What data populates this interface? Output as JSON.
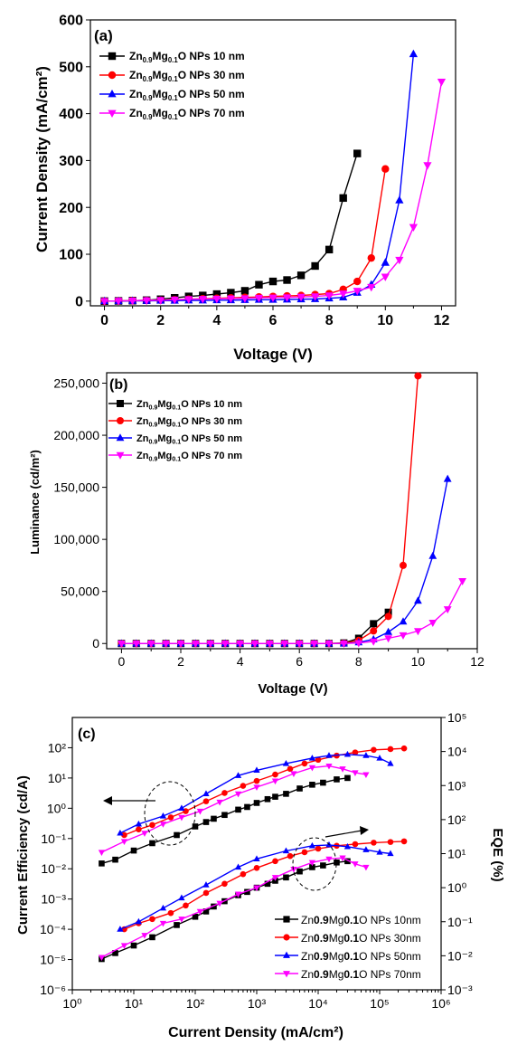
{
  "colors": {
    "s10": "#000000",
    "s30": "#ff0000",
    "s50": "#0000ff",
    "s70": "#ff00ff"
  },
  "chart_data": [
    {
      "panel": "(a)",
      "type": "line",
      "xlabel": "Voltage (V)",
      "ylabel": "Current Density (mA/cm²)",
      "xlim": [
        -0.5,
        12.5
      ],
      "ylim": [
        -10,
        600
      ],
      "xticks": [
        "0",
        "2",
        "4",
        "6",
        "8",
        "10",
        "12"
      ],
      "yticks": [
        "0",
        "100",
        "200",
        "300",
        "400",
        "500",
        "600"
      ],
      "legend_position": "top-left",
      "series": [
        {
          "name": "Zn0.9Mg0.1O NPs 10 nm",
          "marker": "square",
          "x": [
            0,
            0.5,
            1,
            1.5,
            2,
            2.5,
            3,
            3.5,
            4,
            4.5,
            5,
            5.5,
            6,
            6.5,
            7,
            7.5,
            8,
            8.5,
            9
          ],
          "y": [
            0,
            0.5,
            1,
            2,
            4,
            7,
            10,
            12,
            15,
            18,
            22,
            35,
            42,
            45,
            55,
            75,
            110,
            220,
            315
          ]
        },
        {
          "name": "Zn0.9Mg0.1O NPs 30 nm",
          "marker": "circle",
          "x": [
            0,
            0.5,
            1,
            1.5,
            2,
            2.5,
            3,
            3.5,
            4,
            4.5,
            5,
            5.5,
            6,
            6.5,
            7,
            7.5,
            8,
            8.5,
            9,
            9.5,
            10
          ],
          "y": [
            0,
            0.5,
            1,
            1.5,
            2,
            3,
            4,
            5,
            6,
            7,
            8,
            9,
            10,
            11,
            12,
            14,
            16,
            25,
            42,
            92,
            282
          ]
        },
        {
          "name": "Zn0.9Mg0.1O NPs 50 nm",
          "marker": "triangle-up",
          "x": [
            0,
            0.5,
            1,
            1.5,
            2,
            2.5,
            3,
            3.5,
            4,
            4.5,
            5,
            5.5,
            6,
            6.5,
            7,
            7.5,
            8,
            8.5,
            9,
            9.5,
            10,
            10.5,
            11
          ],
          "y": [
            0,
            0,
            0.5,
            0.5,
            1,
            1,
            1.5,
            1.5,
            2,
            2,
            2.5,
            3,
            3,
            3.5,
            4,
            4.5,
            6,
            8,
            18,
            35,
            82,
            215,
            527
          ]
        },
        {
          "name": "Zn0.9Mg0.1O NPs 70 nm",
          "marker": "triangle-down",
          "x": [
            0,
            0.5,
            1,
            1.5,
            2,
            2.5,
            3,
            3.5,
            4,
            4.5,
            5,
            5.5,
            6,
            6.5,
            7,
            7.5,
            8,
            8.5,
            9,
            9.5,
            10,
            10.5,
            11,
            11.5,
            12
          ],
          "y": [
            0,
            0.5,
            1,
            1.5,
            2,
            3,
            4,
            4.5,
            5,
            5.5,
            6,
            7,
            7.5,
            8,
            9,
            10,
            12,
            16,
            22,
            30,
            52,
            88,
            158,
            290,
            468
          ]
        }
      ]
    },
    {
      "panel": "(b)",
      "type": "line",
      "xlabel": "Voltage (V)",
      "ylabel": "Luminance (cd/m²)",
      "xlim": [
        -0.5,
        12
      ],
      "ylim": [
        -5000,
        260000
      ],
      "xticks": [
        "0",
        "2",
        "4",
        "6",
        "8",
        "10",
        "12"
      ],
      "yticks": [
        "0",
        "50,000",
        "100,000",
        "150,000",
        "200,000",
        "250,000"
      ],
      "legend_position": "top-left",
      "series": [
        {
          "name": "Zn0.9Mg0.1O NPs 10 nm",
          "marker": "square",
          "x": [
            0,
            0.5,
            1,
            1.5,
            2,
            2.5,
            3,
            3.5,
            4,
            4.5,
            5,
            5.5,
            6,
            6.5,
            7,
            7.5,
            8,
            8.5,
            9
          ],
          "y": [
            0,
            0,
            0,
            0,
            0,
            0,
            0,
            0,
            0,
            0,
            0,
            0,
            0,
            0,
            0,
            500,
            5000,
            19000,
            30000
          ]
        },
        {
          "name": "Zn0.9Mg0.1O NPs 30 nm",
          "marker": "circle",
          "x": [
            0,
            0.5,
            1,
            1.5,
            2,
            2.5,
            3,
            3.5,
            4,
            4.5,
            5,
            5.5,
            6,
            6.5,
            7,
            7.5,
            8,
            8.5,
            9,
            9.5,
            10
          ],
          "y": [
            0,
            0,
            0,
            0,
            0,
            0,
            0,
            0,
            0,
            0,
            0,
            0,
            0,
            0,
            0,
            300,
            3000,
            12000,
            26000,
            75000,
            257000
          ]
        },
        {
          "name": "Zn0.9Mg0.1O NPs 50 nm",
          "marker": "triangle-up",
          "x": [
            0,
            0.5,
            1,
            1.5,
            2,
            2.5,
            3,
            3.5,
            4,
            4.5,
            5,
            5.5,
            6,
            6.5,
            7,
            7.5,
            8,
            8.5,
            9,
            9.5,
            10,
            10.5,
            11
          ],
          "y": [
            0,
            0,
            0,
            0,
            0,
            0,
            0,
            0,
            0,
            0,
            0,
            0,
            0,
            0,
            0,
            0,
            1000,
            4000,
            11000,
            21000,
            41000,
            84000,
            158000
          ]
        },
        {
          "name": "Zn0.9Mg0.1O NPs 70 nm",
          "marker": "triangle-down",
          "x": [
            0,
            0.5,
            1,
            1.5,
            2,
            2.5,
            3,
            3.5,
            4,
            4.5,
            5,
            5.5,
            6,
            6.5,
            7,
            7.5,
            8,
            8.5,
            9,
            9.5,
            10,
            10.5,
            11,
            11.5
          ],
          "y": [
            0,
            0,
            0,
            0,
            0,
            0,
            0,
            0,
            0,
            0,
            0,
            0,
            0,
            0,
            0,
            0,
            500,
            2000,
            5000,
            8000,
            12000,
            20000,
            33000,
            60000
          ]
        }
      ]
    },
    {
      "panel": "(c)",
      "type": "line",
      "xlabel": "Current Density (mA/cm²)",
      "ylabel": "Current Efficiency (cd/A)",
      "ylabel_right": "EQE (%)",
      "xscale": "log",
      "yscale": "log",
      "xlim": [
        1,
        1000000
      ],
      "ylim": [
        1e-06,
        1000
      ],
      "ylim_right": [
        0.001,
        100000
      ],
      "xticks": [
        "10⁰",
        "10¹",
        "10²",
        "10³",
        "10⁴",
        "10⁵",
        "10⁶"
      ],
      "yticks": [
        "10⁻⁶",
        "10⁻⁵",
        "10⁻⁴",
        "10⁻³",
        "10⁻²",
        "10⁻¹",
        "10⁰",
        "10¹",
        "10²"
      ],
      "yticks_right": [
        "10⁻³",
        "10⁻²",
        "10⁻¹",
        "10⁰",
        "10¹",
        "10²",
        "10³",
        "10⁴",
        "10⁵"
      ],
      "legend_position": "bottom-right",
      "series": [
        {
          "name": "Zn0.9Mg0.1O NPs 10nm",
          "marker": "square",
          "axis": "left",
          "x": [
            3,
            5,
            10,
            20,
            50,
            100,
            150,
            200,
            300,
            500,
            700,
            1000,
            1500,
            2000,
            3000,
            5000,
            8000,
            12000,
            20000,
            30000
          ],
          "y": [
            0.015,
            0.02,
            0.04,
            0.07,
            0.13,
            0.25,
            0.35,
            0.45,
            0.6,
            0.9,
            1.1,
            1.5,
            2,
            2.4,
            3,
            4.5,
            6,
            7,
            9,
            10
          ]
        },
        {
          "name": "Zn0.9Mg0.1O NPs 30nm",
          "marker": "circle",
          "axis": "left",
          "x": [
            7,
            12,
            20,
            40,
            70,
            150,
            300,
            600,
            1000,
            2000,
            3500,
            6000,
            10000,
            20000,
            40000,
            80000,
            150000,
            250000
          ],
          "y": [
            0.13,
            0.2,
            0.28,
            0.5,
            0.8,
            1.7,
            3.2,
            5.5,
            8,
            13,
            20,
            30,
            40,
            55,
            70,
            85,
            90,
            95
          ]
        },
        {
          "name": "Zn0.9Mg0.1O NPs 50nm",
          "marker": "triangle-up",
          "axis": "left",
          "x": [
            6,
            12,
            30,
            60,
            150,
            500,
            1000,
            3000,
            8000,
            15000,
            30000,
            60000,
            100000,
            150000
          ],
          "y": [
            0.15,
            0.3,
            0.55,
            1,
            3,
            12,
            18,
            30,
            45,
            55,
            60,
            55,
            45,
            30
          ]
        },
        {
          "name": "Zn0.9Mg0.1O NPs 70nm",
          "marker": "triangle-down",
          "axis": "left",
          "x": [
            3,
            7,
            15,
            30,
            60,
            120,
            250,
            500,
            1000,
            2000,
            4000,
            8000,
            15000,
            25000,
            40000,
            60000
          ],
          "y": [
            0.035,
            0.08,
            0.15,
            0.3,
            0.5,
            0.8,
            1.6,
            3,
            5,
            8,
            14,
            22,
            25,
            20,
            15,
            13
          ]
        },
        {
          "name": "Zn0.9Mg0.1O NPs 10nm",
          "marker": "square",
          "axis": "right",
          "x": [
            3,
            5,
            10,
            20,
            50,
            100,
            150,
            200,
            300,
            500,
            700,
            1000,
            1500,
            2000,
            3000,
            5000,
            8000,
            12000,
            20000,
            30000
          ],
          "y": [
            0.008,
            0.012,
            0.02,
            0.035,
            0.08,
            0.14,
            0.2,
            0.28,
            0.4,
            0.6,
            0.75,
            1,
            1.3,
            1.6,
            2,
            3,
            4,
            4.5,
            5.5,
            6
          ]
        },
        {
          "name": "Zn0.9Mg0.1O NPs 30nm",
          "marker": "circle",
          "axis": "right",
          "x": [
            7,
            12,
            20,
            40,
            70,
            150,
            300,
            600,
            1000,
            2000,
            3500,
            6000,
            10000,
            20000,
            40000,
            80000,
            150000,
            250000
          ],
          "y": [
            0.06,
            0.09,
            0.12,
            0.18,
            0.3,
            0.7,
            1.3,
            2.5,
            3.8,
            6,
            8.5,
            11,
            14,
            17,
            19,
            21,
            22,
            23
          ]
        },
        {
          "name": "Zn0.9Mg0.1O NPs 50nm",
          "marker": "triangle-up",
          "axis": "right",
          "x": [
            6,
            12,
            30,
            60,
            150,
            500,
            1000,
            3000,
            8000,
            15000,
            30000,
            60000,
            100000,
            150000
          ],
          "y": [
            0.06,
            0.1,
            0.25,
            0.5,
            1.2,
            4,
            7,
            12,
            17,
            18,
            16,
            13,
            11,
            10
          ]
        },
        {
          "name": "Zn0.9Mg0.1O NPs 70nm",
          "marker": "triangle-down",
          "axis": "right",
          "x": [
            3,
            7,
            15,
            30,
            60,
            120,
            250,
            500,
            1000,
            2000,
            4000,
            8000,
            15000,
            25000,
            40000,
            60000
          ],
          "y": [
            0.009,
            0.02,
            0.04,
            0.09,
            0.12,
            0.2,
            0.35,
            0.65,
            1,
            2,
            3.5,
            5.5,
            7,
            7.5,
            5,
            4
          ]
        }
      ]
    }
  ]
}
